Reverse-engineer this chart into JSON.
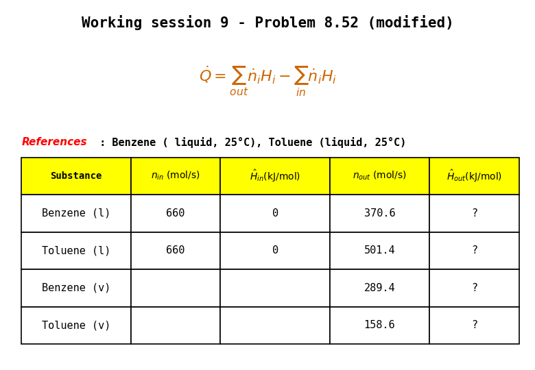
{
  "title": "Working session 9 - Problem 8.52 (modified)",
  "references_italic": "References",
  "references_rest": " : Benzene ( liquid, 25°C), Toluene (liquid, 25°C)",
  "col_headers": [
    "Substance",
    "n_in (mol/s)",
    "H_in(kJ/mol)",
    "n_out (mol/s)",
    "H_out(kJ/mol)"
  ],
  "rows": [
    [
      "Benzene (l)",
      "660",
      "0",
      "370.6",
      "?"
    ],
    [
      "Toluene (l)",
      "660",
      "0",
      "501.4",
      "?"
    ],
    [
      "Benzene (v)",
      "",
      "",
      "289.4",
      "?"
    ],
    [
      "Toluene (v)",
      "",
      "",
      "158.6",
      "?"
    ]
  ],
  "header_bg": "#FFFF00",
  "table_bg": "#FFFFFF",
  "border_color": "#000000",
  "title_color": "#000000",
  "ref_italic_color": "#FF0000",
  "ref_rest_color": "#000000",
  "table_text_color": "#000000",
  "background_color": "#FFFFFF"
}
